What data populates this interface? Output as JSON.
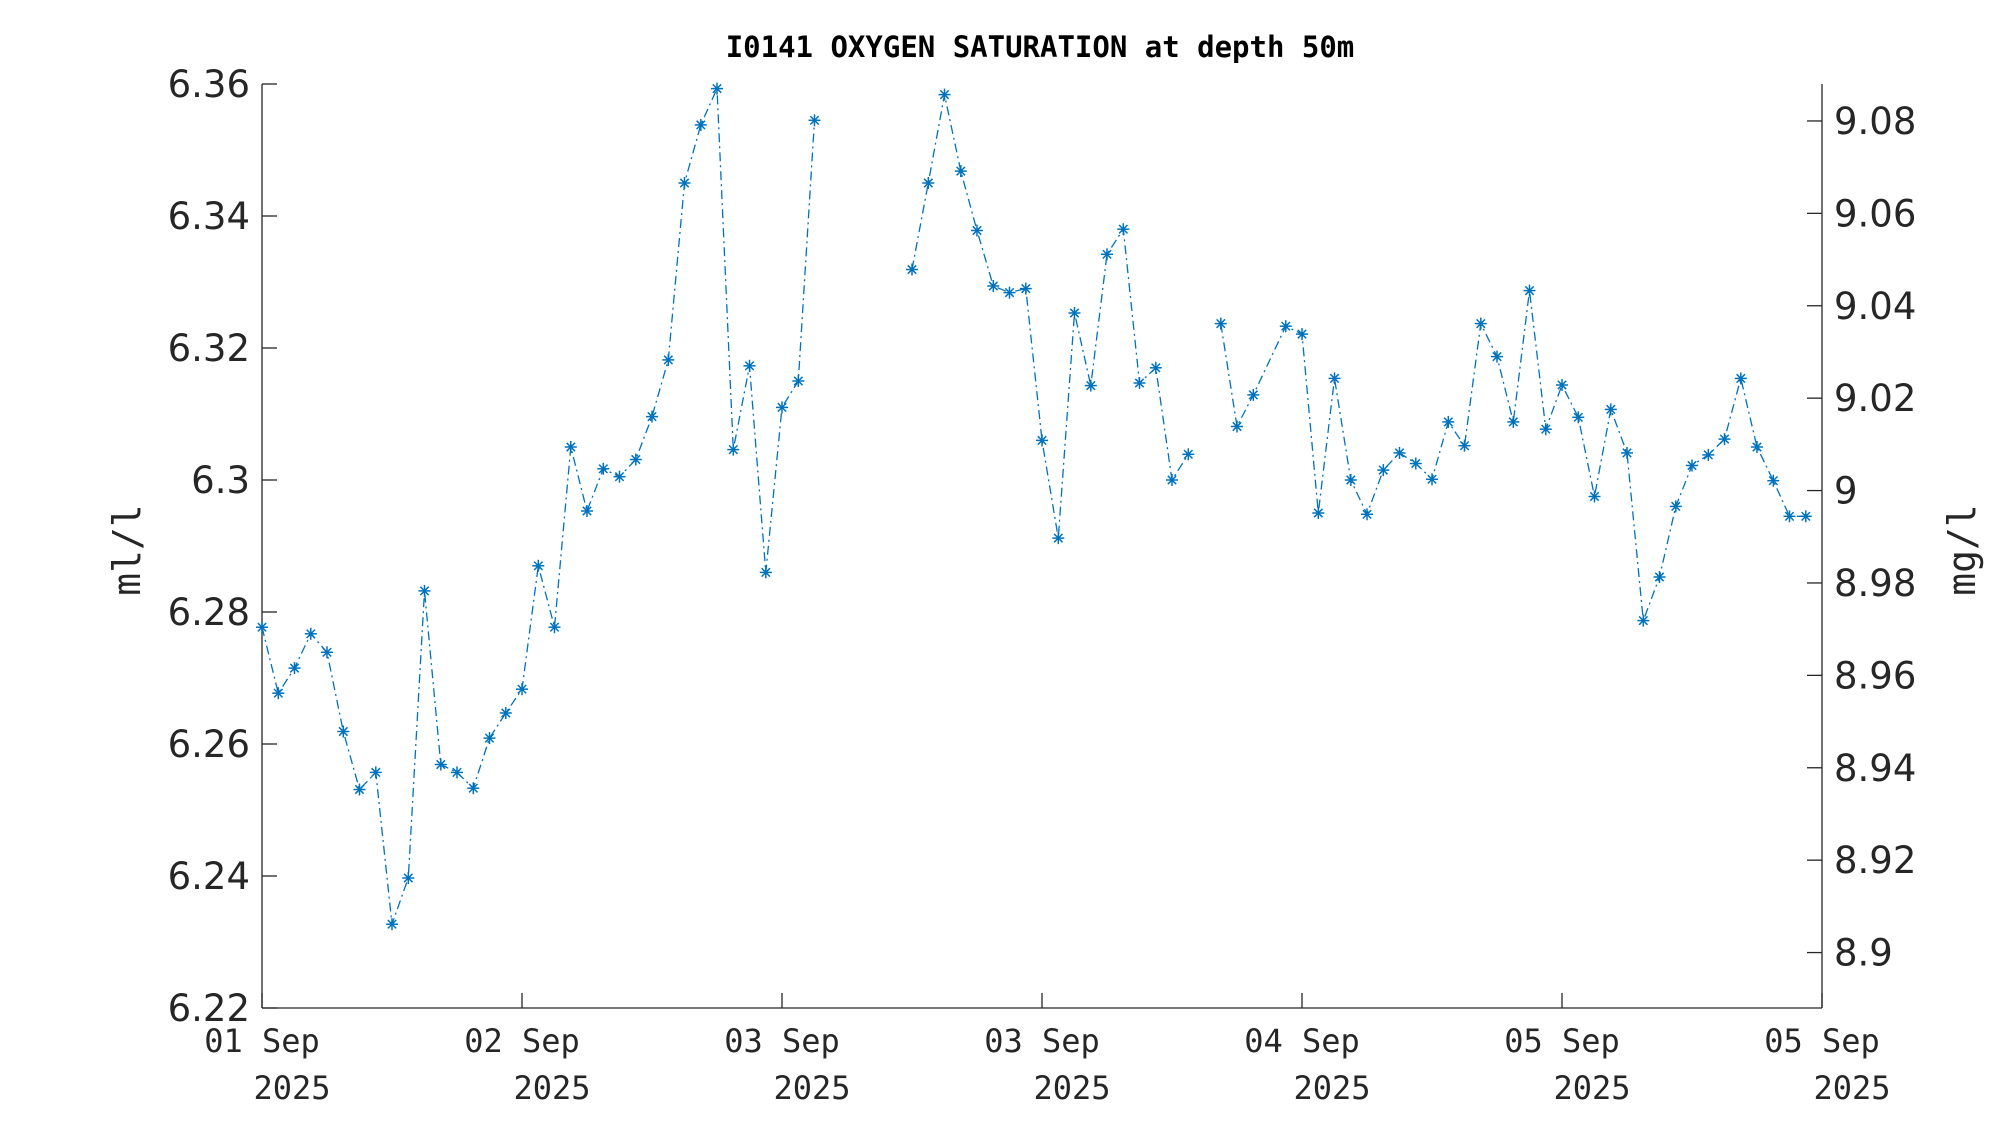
{
  "chart_data": {
    "type": "line",
    "title": "I0141 OXYGEN SATURATION at depth 50m",
    "ylabel": "ml/l",
    "ylabel_right": "mg/l",
    "ylim": [
      6.22,
      6.36
    ],
    "ylim_right": [
      8.888,
      9.088
    ],
    "yticks": [
      "6.22",
      "6.24",
      "6.26",
      "6.28",
      "6.3",
      "6.32",
      "6.34",
      "6.36"
    ],
    "yticks_right": [
      "8.9",
      "8.92",
      "8.94",
      "8.96",
      "8.98",
      "9",
      "9.02",
      "9.04",
      "9.06",
      "9.08"
    ],
    "xticks": [
      {
        "line1": "01 Sep",
        "line2": "2025"
      },
      {
        "line1": "02 Sep",
        "line2": "2025"
      },
      {
        "line1": "03 Sep",
        "line2": "2025"
      },
      {
        "line1": "03 Sep",
        "line2": "2025"
      },
      {
        "line1": "04 Sep",
        "line2": "2025"
      },
      {
        "line1": "05 Sep",
        "line2": "2025"
      },
      {
        "line1": "05 Sep",
        "line2": "2025"
      }
    ],
    "x_range": [
      0,
      6
    ],
    "marker": "asterisk",
    "line_style": "dash-dot",
    "color": "#0072BD",
    "grid": false,
    "series": [
      {
        "segments": [
          [
            [
              0.0,
              6.2777
            ],
            [
              0.0625,
              6.2677
            ],
            [
              0.125,
              6.2715
            ],
            [
              0.1875,
              6.2767
            ],
            [
              0.25,
              6.2739
            ],
            [
              0.3125,
              6.2619
            ],
            [
              0.375,
              6.2531
            ],
            [
              0.4375,
              6.2557
            ],
            [
              0.5,
              6.2327
            ],
            [
              0.5625,
              6.2397
            ],
            [
              0.625,
              6.2832
            ],
            [
              0.6875,
              6.2569
            ],
            [
              0.75,
              6.2557
            ],
            [
              0.8125,
              6.2533
            ],
            [
              0.875,
              6.2609
            ],
            [
              0.9375,
              6.2647
            ],
            [
              1.0,
              6.2683
            ],
            [
              1.0625,
              6.287
            ],
            [
              1.125,
              6.2777
            ],
            [
              1.1875,
              6.305
            ],
            [
              1.25,
              6.2953
            ],
            [
              1.3125,
              6.3017
            ],
            [
              1.375,
              6.3005
            ],
            [
              1.4375,
              6.3031
            ],
            [
              1.5,
              6.3096
            ],
            [
              1.5625,
              6.3182
            ],
            [
              1.625,
              6.345
            ],
            [
              1.6875,
              6.3538
            ],
            [
              1.75,
              6.3593
            ],
            [
              1.8125,
              6.3046
            ],
            [
              1.875,
              6.3173
            ],
            [
              1.9375,
              6.286
            ],
            [
              2.0,
              6.311
            ],
            [
              2.0625,
              6.315
            ],
            [
              2.125,
              6.3545
            ]
          ],
          [
            [
              2.5,
              6.3319
            ],
            [
              2.5625,
              6.345
            ],
            [
              2.625,
              6.3584
            ],
            [
              2.6875,
              6.3468
            ],
            [
              2.75,
              6.3378
            ],
            [
              2.8125,
              6.3294
            ],
            [
              2.875,
              6.3284
            ],
            [
              2.9375,
              6.329
            ],
            [
              3.0,
              6.306
            ],
            [
              3.0625,
              6.2912
            ],
            [
              3.125,
              6.3253
            ],
            [
              3.1875,
              6.3143
            ],
            [
              3.25,
              6.3342
            ],
            [
              3.3125,
              6.338
            ],
            [
              3.375,
              6.3147
            ],
            [
              3.4375,
              6.317
            ],
            [
              3.5,
              6.3
            ],
            [
              3.5625,
              6.3039
            ]
          ],
          [
            [
              3.6875,
              6.3237
            ],
            [
              3.75,
              6.3081
            ],
            [
              3.8125,
              6.3129
            ],
            [
              3.9375,
              6.3233
            ],
            [
              4.0,
              6.3221
            ],
            [
              4.0625,
              6.295
            ],
            [
              4.125,
              6.3154
            ],
            [
              4.1875,
              6.3
            ],
            [
              4.25,
              6.2948
            ],
            [
              4.3125,
              6.3015
            ],
            [
              4.375,
              6.3041
            ],
            [
              4.4375,
              6.3025
            ],
            [
              4.5,
              6.3001
            ],
            [
              4.5625,
              6.3088
            ],
            [
              4.625,
              6.3052
            ],
            [
              4.6875,
              6.3237
            ],
            [
              4.75,
              6.3187
            ],
            [
              4.8125,
              6.3088
            ],
            [
              4.875,
              6.3287
            ],
            [
              4.9375,
              6.3077
            ],
            [
              5.0,
              6.3144
            ],
            [
              5.0625,
              6.3095
            ],
            [
              5.125,
              6.2975
            ],
            [
              5.1875,
              6.3107
            ],
            [
              5.25,
              6.3041
            ],
            [
              5.3125,
              6.2787
            ],
            [
              5.375,
              6.2853
            ],
            [
              5.4375,
              6.296
            ],
            [
              5.5,
              6.3022
            ],
            [
              5.5625,
              6.3038
            ],
            [
              5.625,
              6.3062
            ],
            [
              5.6875,
              6.3154
            ],
            [
              5.75,
              6.305
            ],
            [
              5.8125,
              6.2999
            ],
            [
              5.875,
              6.2945
            ],
            [
              5.9375,
              6.2945
            ]
          ]
        ]
      }
    ]
  }
}
